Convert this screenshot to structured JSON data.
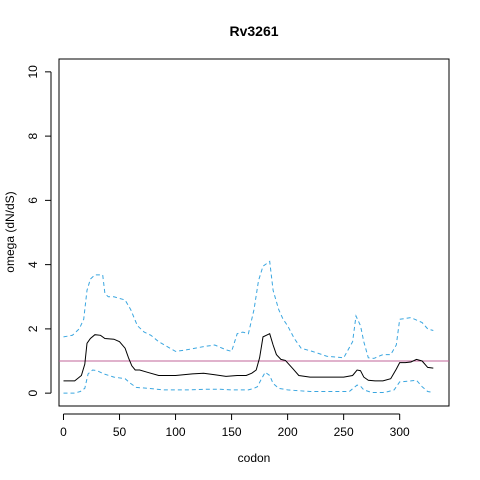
{
  "chart_data": {
    "type": "line",
    "title": "Rv3261",
    "xlabel": "codon",
    "ylabel": "omega (dN/dS)",
    "xlim": [
      -4,
      344
    ],
    "ylim": [
      -0.4,
      10.4
    ],
    "xticks": [
      0,
      50,
      100,
      150,
      200,
      250,
      300
    ],
    "yticks": [
      0,
      2,
      4,
      6,
      8,
      10
    ],
    "reference_line": {
      "y": 1,
      "color": "#c0649a"
    },
    "grid": false,
    "series": [
      {
        "role": "estimate",
        "color": "#000000",
        "dash": "solid",
        "x": [
          0,
          10,
          16,
          19,
          21,
          24,
          28,
          33,
          37,
          45,
          50,
          55,
          58,
          61,
          64,
          68,
          75,
          85,
          100,
          115,
          125,
          135,
          145,
          155,
          163,
          168,
          172,
          175,
          178,
          184,
          187,
          190,
          194,
          198,
          205,
          210,
          220,
          235,
          250,
          258,
          262,
          265,
          268,
          272,
          278,
          285,
          292,
          297,
          300,
          305,
          310,
          315,
          320,
          325,
          330
        ],
        "values": [
          0.38,
          0.38,
          0.55,
          0.9,
          1.55,
          1.7,
          1.82,
          1.8,
          1.7,
          1.68,
          1.6,
          1.4,
          1.1,
          0.85,
          0.72,
          0.72,
          0.65,
          0.55,
          0.55,
          0.6,
          0.62,
          0.57,
          0.52,
          0.55,
          0.55,
          0.62,
          0.72,
          1.1,
          1.75,
          1.85,
          1.5,
          1.2,
          1.05,
          1.02,
          0.75,
          0.55,
          0.5,
          0.5,
          0.5,
          0.55,
          0.72,
          0.7,
          0.5,
          0.4,
          0.38,
          0.38,
          0.45,
          0.75,
          0.95,
          0.95,
          0.97,
          1.05,
          1.0,
          0.8,
          0.78
        ]
      },
      {
        "role": "upper bound",
        "color": "#3aa6e0",
        "dash": "dashed",
        "x": [
          0,
          8,
          14,
          18,
          21,
          24,
          28,
          35,
          37,
          40,
          45,
          55,
          60,
          66,
          72,
          78,
          85,
          95,
          100,
          110,
          125,
          135,
          145,
          150,
          155,
          160,
          165,
          170,
          174,
          178,
          184,
          187,
          192,
          196,
          200,
          206,
          212,
          222,
          235,
          250,
          258,
          261,
          265,
          268,
          272,
          277,
          285,
          292,
          297,
          300,
          310,
          320,
          325,
          330
        ],
        "values": [
          1.75,
          1.8,
          2.0,
          2.3,
          3.2,
          3.55,
          3.68,
          3.68,
          3.1,
          3.0,
          3.0,
          2.9,
          2.6,
          2.1,
          1.9,
          1.8,
          1.6,
          1.4,
          1.3,
          1.35,
          1.45,
          1.5,
          1.35,
          1.3,
          1.85,
          1.9,
          1.85,
          2.6,
          3.5,
          3.95,
          4.1,
          3.2,
          2.6,
          2.3,
          2.1,
          1.7,
          1.4,
          1.3,
          1.15,
          1.1,
          1.6,
          2.4,
          2.1,
          1.6,
          1.1,
          1.08,
          1.2,
          1.2,
          1.5,
          2.3,
          2.35,
          2.2,
          2.0,
          1.95
        ]
      },
      {
        "role": "lower bound",
        "color": "#3aa6e0",
        "dash": "dashed",
        "x": [
          0,
          10,
          15,
          19,
          22,
          26,
          30,
          36,
          45,
          55,
          60,
          65,
          75,
          90,
          110,
          125,
          140,
          150,
          160,
          165,
          170,
          173,
          176,
          180,
          184,
          187,
          192,
          200,
          220,
          240,
          255,
          262,
          265,
          268,
          275,
          285,
          290,
          295,
          300,
          310,
          315,
          320,
          325,
          330
        ],
        "values": [
          0.0,
          0.0,
          0.05,
          0.15,
          0.6,
          0.72,
          0.7,
          0.6,
          0.5,
          0.45,
          0.3,
          0.18,
          0.15,
          0.1,
          0.1,
          0.12,
          0.12,
          0.1,
          0.1,
          0.1,
          0.15,
          0.2,
          0.4,
          0.65,
          0.55,
          0.3,
          0.15,
          0.1,
          0.05,
          0.05,
          0.05,
          0.25,
          0.22,
          0.1,
          0.02,
          0.02,
          0.05,
          0.1,
          0.35,
          0.38,
          0.4,
          0.2,
          0.05,
          0.02
        ]
      }
    ]
  }
}
